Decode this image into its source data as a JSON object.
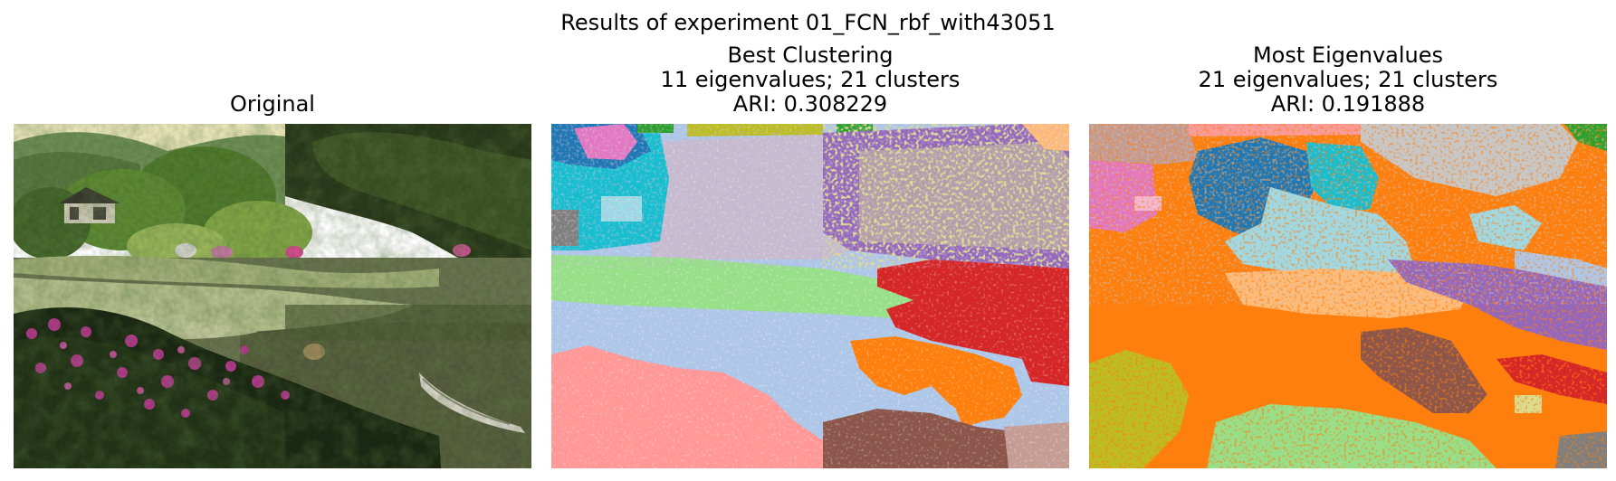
{
  "figure": {
    "suptitle": "Results of experiment 01_FCN_rbf_with43051"
  },
  "panels": [
    {
      "title_lines": [
        "Original"
      ],
      "image": "photo of a Japanese garden pond with lily pads, trees, a small house, pink azalea flowers in the foreground and a small boat at right"
    },
    {
      "title_lines": [
        "Best Clustering",
        "11 eigenvalues; 21 clusters",
        "ARI: 0.308229"
      ],
      "eigenvalues": 11,
      "clusters": 21,
      "ari": 0.308229
    },
    {
      "title_lines": [
        "Most Eigenvalues",
        "21 eigenvalues; 21 clusters",
        "ARI: 0.191888"
      ],
      "eigenvalues": 21,
      "clusters": 21,
      "ari": 0.191888
    }
  ],
  "palette": {
    "blue": "#1f77b4",
    "light_blue": "#aec7e8",
    "orange": "#ff7f0e",
    "light_orange": "#ffbb78",
    "green": "#2ca02c",
    "light_green": "#98df8a",
    "red": "#d62728",
    "pink": "#ff9896",
    "purple": "#9467bd",
    "lavender": "#c5b0d5",
    "brown": "#8c564b",
    "rose": "#c49c94",
    "magenta": "#e377c2",
    "light_magenta": "#f7b6d2",
    "gray": "#7f7f7f",
    "light_gray": "#c7c7c7",
    "olive": "#bcbd22",
    "khaki": "#dbdb8d",
    "cyan": "#17becf",
    "light_cyan": "#9edae5"
  }
}
